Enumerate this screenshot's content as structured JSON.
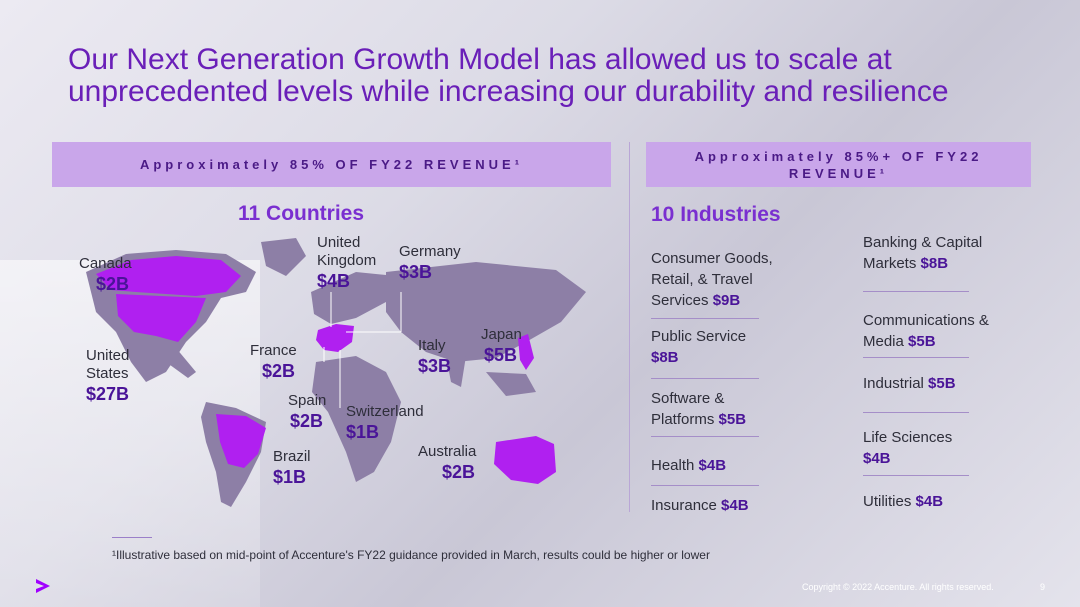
{
  "title": {
    "line1": "Our Next Generation Growth Model has allowed us to scale at",
    "line2": "unprecedented levels while increasing our durability and resilience"
  },
  "left": {
    "banner": "Approximately 85% OF FY22 REVENUE¹",
    "heading": "11 Countries",
    "countries": [
      {
        "name": "Canada",
        "value": "$2B"
      },
      {
        "name": "United Kingdom",
        "value": "$4B"
      },
      {
        "name": "Germany",
        "value": "$3B"
      },
      {
        "name": "United States",
        "value": "$27B"
      },
      {
        "name": "France",
        "value": "$2B"
      },
      {
        "name": "Italy",
        "value": "$3B"
      },
      {
        "name": "Japan",
        "value": "$5B"
      },
      {
        "name": "Spain",
        "value": "$2B"
      },
      {
        "name": "Switzerland",
        "value": "$1B"
      },
      {
        "name": "Brazil",
        "value": "$1B"
      },
      {
        "name": "Australia",
        "value": "$2B"
      }
    ]
  },
  "right": {
    "banner": "Approximately 85%+ OF FY22 REVENUE¹",
    "heading": "10 Industries",
    "industries": [
      {
        "name": "Consumer Goods, Retail, & Travel Services",
        "value": "$9B"
      },
      {
        "name": "Public Service",
        "value": "$8B"
      },
      {
        "name": "Software & Platforms",
        "value": "$5B"
      },
      {
        "name": "Health",
        "value": "$4B"
      },
      {
        "name": "Insurance",
        "value": "$4B"
      },
      {
        "name": "Banking & Capital Markets",
        "value": "$8B"
      },
      {
        "name": "Communications & Media",
        "value": "$5B"
      },
      {
        "name": "Industrial",
        "value": "$5B"
      },
      {
        "name": "Life Sciences",
        "value": "$4B"
      },
      {
        "name": "Utilities",
        "value": "$4B"
      }
    ]
  },
  "footnote": "¹Illustrative based on mid-point of Accenture's FY22 guidance provided in March, results could be higher or lower",
  "copyright": "Copyright © 2022 Accenture. All rights reserved.",
  "page_number": "9",
  "colors": {
    "accent": "#7a2fd0",
    "value": "#4a1498",
    "banner": "#c9a6ea",
    "highlight": "#b020f0"
  },
  "logo_icon": "accenture-arrow-icon"
}
